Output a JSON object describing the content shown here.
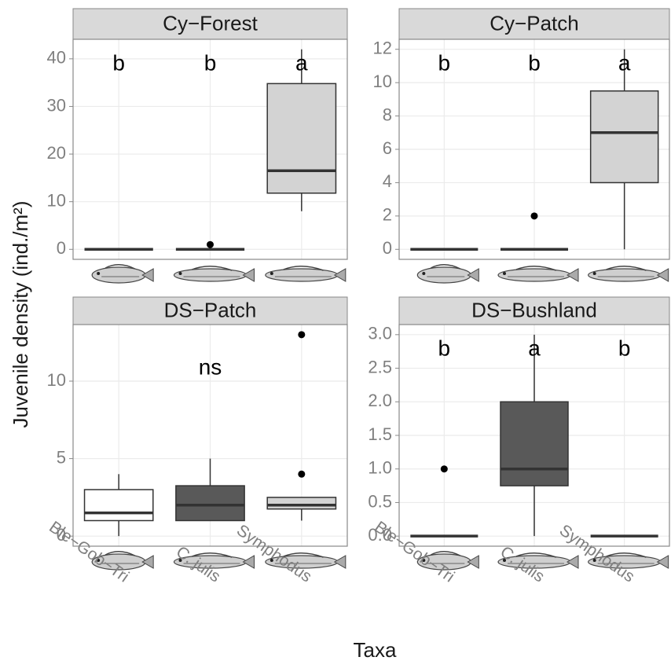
{
  "axis_titles": {
    "y": "Juvenile density (ind./m²)",
    "x": "Taxa"
  },
  "chart_data": [
    {
      "type": "box",
      "title": "Cy−Forest",
      "ylim": [
        -2.1,
        44.1
      ],
      "yticks": [
        0,
        10,
        20,
        30,
        40
      ],
      "grid": true,
      "letters": [
        "b",
        "b",
        "a"
      ],
      "boxes": [
        {
          "min": 0,
          "q1": 0,
          "median": 0,
          "q3": 0,
          "max": 0,
          "outliers": [],
          "color": "#ffffff"
        },
        {
          "min": 0,
          "q1": 0,
          "median": 0,
          "q3": 0,
          "max": 0,
          "outliers": [
            1
          ],
          "color": "#595959"
        },
        {
          "min": 8,
          "q1": 11.8,
          "median": 16.5,
          "q3": 34.8,
          "max": 42,
          "outliers": [],
          "color": "#d3d3d3"
        }
      ]
    },
    {
      "type": "box",
      "title": "Cy−Patch",
      "ylim": [
        -0.6,
        12.6
      ],
      "yticks": [
        0,
        2,
        4,
        6,
        8,
        10,
        12
      ],
      "grid": true,
      "letters": [
        "b",
        "b",
        "a"
      ],
      "boxes": [
        {
          "min": 0,
          "q1": 0,
          "median": 0,
          "q3": 0,
          "max": 0,
          "outliers": [],
          "color": "#ffffff"
        },
        {
          "min": 0,
          "q1": 0,
          "median": 0,
          "q3": 0,
          "max": 0,
          "outliers": [
            2
          ],
          "color": "#595959"
        },
        {
          "min": 0,
          "q1": 4,
          "median": 7,
          "q3": 9.5,
          "max": 12,
          "outliers": [],
          "color": "#d3d3d3"
        }
      ]
    },
    {
      "type": "box",
      "title": "DS−Patch",
      "ylim": [
        -0.65,
        13.65
      ],
      "yticks": [
        0,
        5,
        10
      ],
      "grid": true,
      "categories": [
        "Ble−Gob−Tri",
        "C. julis",
        "Symphodus"
      ],
      "letters": [
        null,
        "ns",
        null
      ],
      "boxes": [
        {
          "min": 0,
          "q1": 1,
          "median": 1.5,
          "q3": 3,
          "max": 4,
          "outliers": [],
          "color": "#ffffff"
        },
        {
          "min": 1,
          "q1": 1,
          "median": 2,
          "q3": 3.25,
          "max": 5,
          "outliers": [],
          "color": "#595959"
        },
        {
          "min": 1,
          "q1": 1.75,
          "median": 2,
          "q3": 2.5,
          "max": 2.5,
          "outliers": [
            4,
            13
          ],
          "color": "#d3d3d3"
        }
      ]
    },
    {
      "type": "box",
      "title": "DS−Bushland",
      "ylim": [
        -0.15,
        3.15
      ],
      "yticks": [
        {
          "value": 0,
          "label": "0.0"
        },
        0.5,
        {
          "value": 1,
          "label": "1.0"
        },
        1.5,
        {
          "value": 2,
          "label": "2.0"
        },
        2.5,
        {
          "value": 3,
          "label": "3.0"
        }
      ],
      "grid": true,
      "categories": [
        "Ble−Gob−Tri",
        "C. julis",
        "Symphodus"
      ],
      "letters": [
        "b",
        "a",
        "b"
      ],
      "boxes": [
        {
          "min": 0,
          "q1": 0,
          "median": 0,
          "q3": 0,
          "max": 0,
          "outliers": [
            1
          ],
          "color": "#ffffff"
        },
        {
          "min": 0,
          "q1": 0.75,
          "median": 1,
          "q3": 2,
          "max": 3,
          "outliers": [],
          "color": "#595959"
        },
        {
          "min": 0,
          "q1": 0,
          "median": 0,
          "q3": 0,
          "max": 0,
          "outliers": [],
          "color": "#d3d3d3"
        }
      ]
    }
  ]
}
